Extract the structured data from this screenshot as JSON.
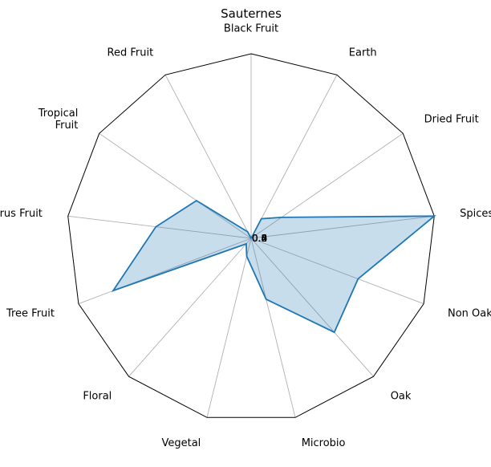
{
  "chart_data": {
    "type": "radar",
    "title": "Sauternes",
    "categories": [
      "Black Fruit",
      "Earth",
      "Dried Fruit",
      "Spices",
      "Non Oak",
      "Oak",
      "Microbio",
      "Vegetal",
      "Floral",
      "Tree Fruit",
      "Citrus Fruit",
      "Tropical\nFruit",
      "Red Fruit"
    ],
    "series": [
      {
        "values": [
          0.0,
          0.12,
          0.2,
          1.0,
          0.62,
          0.68,
          0.34,
          0.1,
          0.04,
          0.8,
          0.52,
          0.36,
          0.04
        ]
      }
    ],
    "rlim": [
      0,
      1
    ],
    "tick_labels": [
      "0.0",
      "0.2",
      "0.4",
      "0.6",
      "0.8"
    ],
    "grid": true,
    "colors": {
      "line": "#1f77b4",
      "fill": "#1f77b4",
      "spoke": "#b0b0b0",
      "frame": "#000000"
    }
  }
}
